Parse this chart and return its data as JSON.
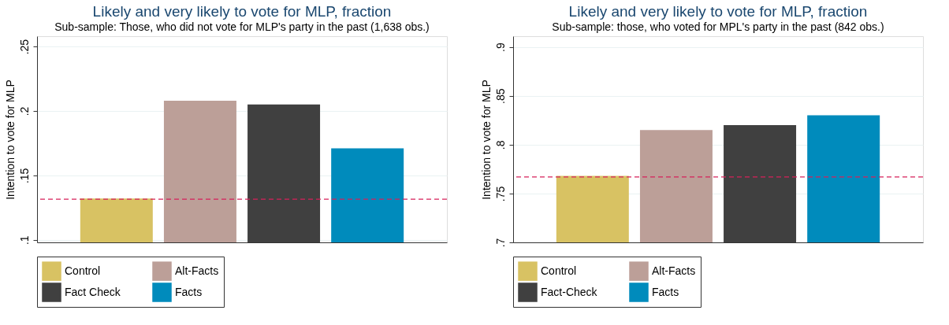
{
  "chart_data": [
    {
      "type": "bar",
      "title": "Likely and very likely to vote for MLP, fraction",
      "subtitle": "Sub-sample: Those, who did not vote for MLP's party in the past (1,638 obs.)",
      "ylabel": "Intention to vote for MLP",
      "categories": [
        null
      ],
      "series": [
        {
          "name": "Control",
          "color": "#d8c263",
          "values": [
            0.132
          ]
        },
        {
          "name": "Alt-Facts",
          "color": "#bc9f98",
          "values": [
            0.208
          ]
        },
        {
          "name": "Fact Check",
          "color": "#404040",
          "values": [
            0.205
          ]
        },
        {
          "name": "Facts",
          "color": "#008bbc",
          "values": [
            0.171
          ]
        }
      ],
      "ylim": [
        0.098,
        0.258
      ],
      "yticks": [
        {
          "value": 0.1,
          "label": ".1"
        },
        {
          "value": 0.15,
          "label": ".15"
        },
        {
          "value": 0.2,
          "label": ".2"
        },
        {
          "value": 0.25,
          "label": ".25"
        }
      ],
      "ref_lines": [
        {
          "axis": "y",
          "value": 0.1315,
          "color": "#d6205a",
          "line_style": "dashed"
        }
      ],
      "grid": "y",
      "legend": "bottom"
    },
    {
      "type": "bar",
      "title": "Likely and very likely to vote for MLP, fraction",
      "subtitle": "Sub-sample: those, who voted for MPL's party in the past (842 obs.)",
      "ylabel": "Intention to vote for MLP",
      "categories": [
        null
      ],
      "series": [
        {
          "name": "Control",
          "color": "#d8c263",
          "values": [
            0.768
          ]
        },
        {
          "name": "Alt-Facts",
          "color": "#bc9f98",
          "values": [
            0.815
          ]
        },
        {
          "name": "Fact-Check",
          "color": "#404040",
          "values": [
            0.82
          ]
        },
        {
          "name": "Facts",
          "color": "#008bbc",
          "values": [
            0.83
          ]
        }
      ],
      "ylim": [
        0.7,
        0.911
      ],
      "yticks": [
        {
          "value": 0.7,
          "label": ".7"
        },
        {
          "value": 0.75,
          "label": ".75"
        },
        {
          "value": 0.8,
          "label": ".8"
        },
        {
          "value": 0.85,
          "label": ".85"
        },
        {
          "value": 0.9,
          "label": ".9"
        }
      ],
      "ref_lines": [
        {
          "axis": "y",
          "value": 0.767,
          "color": "#d6205a",
          "line_style": "dashed"
        }
      ],
      "grid": "y",
      "legend": "bottom"
    }
  ]
}
